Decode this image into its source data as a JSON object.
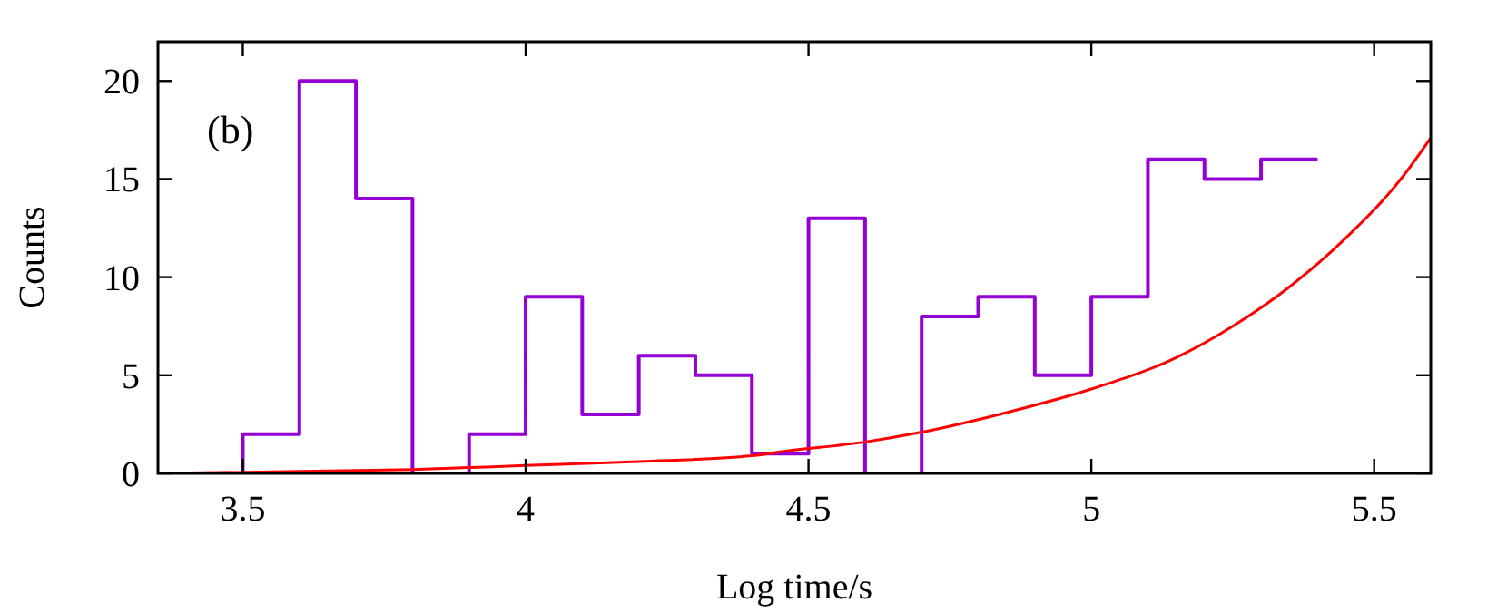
{
  "chart_data": {
    "type": "histogram",
    "xlabel": "Log time/s",
    "ylabel": "Counts",
    "annotations": [
      "(b)"
    ],
    "xlim": [
      3.35,
      5.6
    ],
    "ylim": [
      0,
      22
    ],
    "xticks": [
      3.5,
      4,
      4.5,
      5,
      5.5
    ],
    "yticks": [
      0,
      5,
      10,
      15,
      20
    ],
    "grid": false,
    "bins": [
      3.35,
      3.5,
      3.6,
      3.7,
      3.8,
      3.9,
      4.0,
      4.1,
      4.2,
      4.3,
      4.4,
      4.5,
      4.6,
      4.7,
      4.8,
      4.9,
      5.0,
      5.1,
      5.2,
      5.3,
      5.4
    ],
    "series": [
      {
        "color": "#9400d3",
        "values": [
          0,
          2,
          20,
          14,
          0,
          2,
          9,
          3,
          6,
          5,
          1,
          13,
          0,
          8,
          9,
          5,
          9,
          16,
          15,
          16
        ]
      },
      {
        "type": "line",
        "color": "#ff0000",
        "x": [
          3.35,
          3.6,
          3.8,
          4.0,
          4.2,
          4.4,
          4.45,
          4.6,
          4.7,
          4.85,
          5.0,
          5.15,
          5.25,
          5.35,
          5.45,
          5.55,
          5.6
        ],
        "values": [
          0,
          0.1,
          0.2,
          0.4,
          0.6,
          0.9,
          1.1,
          1.6,
          2.1,
          3.1,
          4.3,
          5.9,
          7.5,
          9.5,
          12,
          15.1,
          17.1
        ]
      }
    ]
  }
}
